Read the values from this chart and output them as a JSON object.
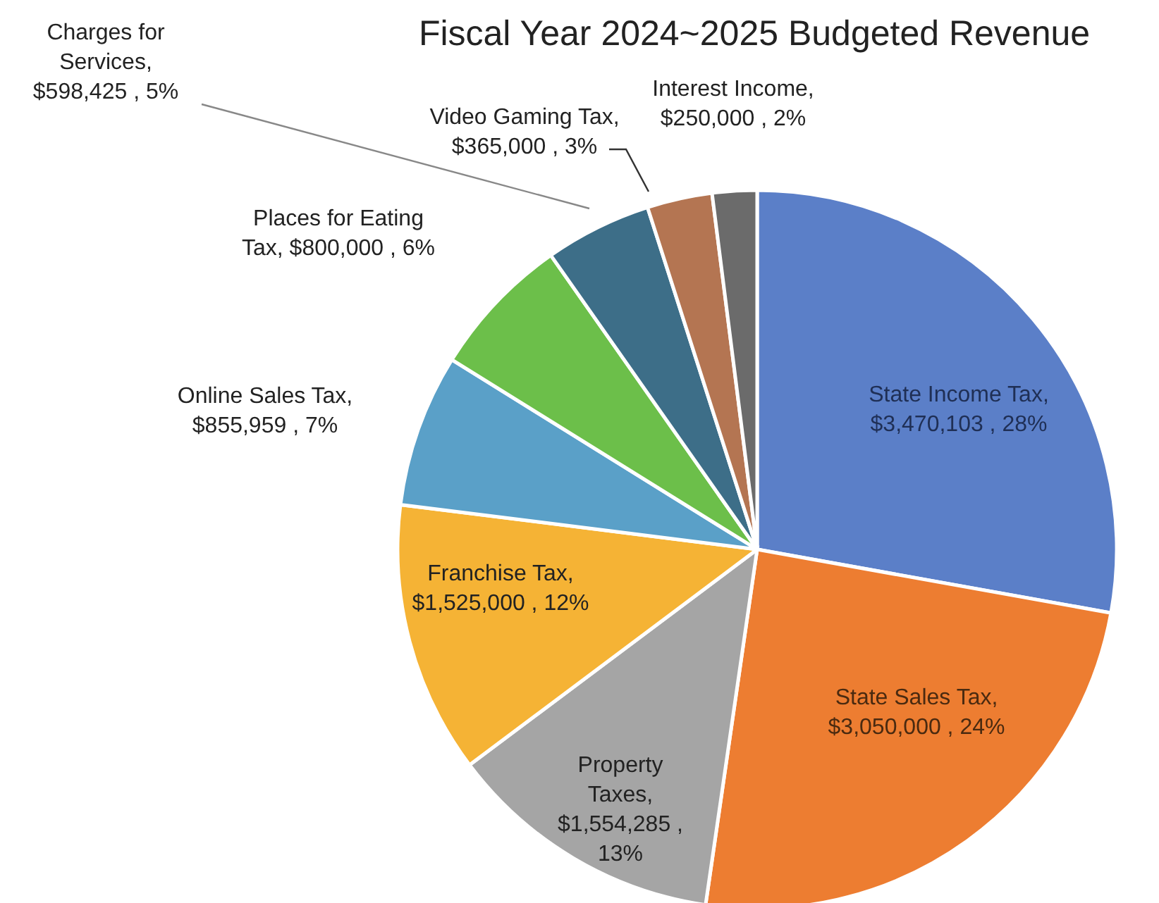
{
  "chart_data": {
    "type": "pie",
    "title": "Fiscal Year 2024~2025 Budgeted Revenue",
    "categories": [
      "State Income Tax",
      "State Sales Tax",
      "Property Taxes",
      "Franchise Tax",
      "Online Sales Tax",
      "Places for Eating Tax",
      "Charges for Services",
      "Video Gaming Tax",
      "Interest Income"
    ],
    "values": [
      3470103,
      3050000,
      1554285,
      1525000,
      855959,
      800000,
      598425,
      365000,
      250000
    ],
    "value_labels": [
      ", $3,470,103 , 28%",
      ", $3,050,000 , 24%",
      ", $1,554,285 , 13%",
      ", $1,525,000 , 12%",
      ", $855,959 , 7%",
      ", $800,000 , 6%",
      ", $598,425 , 5%",
      ", $365,000 , 3%",
      ", $250,000 , 2%"
    ],
    "colors": [
      "#5b7fc8",
      "#ed7d31",
      "#a5a5a5",
      "#f5b335",
      "#5aa0c8",
      "#6cbf4a",
      "#3d6e88",
      "#b47552",
      "#6b6b6b"
    ],
    "legend": false
  }
}
